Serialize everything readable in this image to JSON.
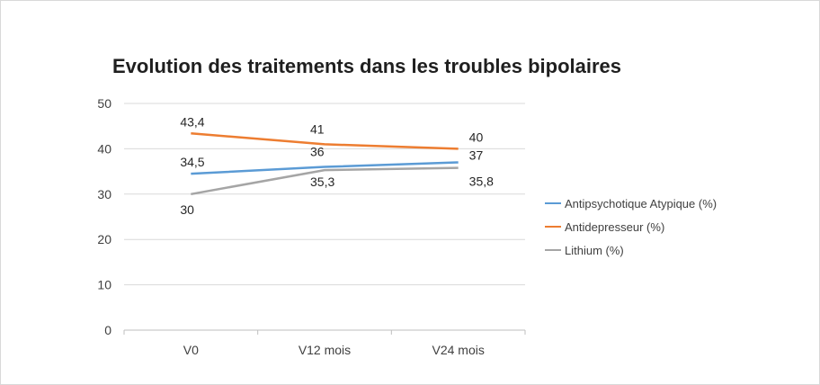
{
  "chart_data": {
    "type": "line",
    "title": "Evolution des traitements dans les troubles bipolaires",
    "categories": [
      "V0",
      "V12 mois",
      "V24 mois"
    ],
    "ylim": [
      0,
      50
    ],
    "yticks": [
      0,
      10,
      20,
      30,
      40,
      50
    ],
    "grid": true,
    "legend_position": "right",
    "series": [
      {
        "name": "Antipsychotique Atypique (%)",
        "values": [
          34.5,
          36,
          37
        ],
        "labels": [
          "34,5",
          "36",
          "37"
        ],
        "color": "#5b9bd5"
      },
      {
        "name": "Antidepresseur (%)",
        "values": [
          43.4,
          41,
          40
        ],
        "labels": [
          "43,4",
          "41",
          "40"
        ],
        "color": "#ed7d31"
      },
      {
        "name": "Lithium (%)",
        "values": [
          30,
          35.3,
          35.8
        ],
        "labels": [
          "30",
          "35,3",
          "35,8"
        ],
        "color": "#a5a5a5"
      }
    ]
  }
}
